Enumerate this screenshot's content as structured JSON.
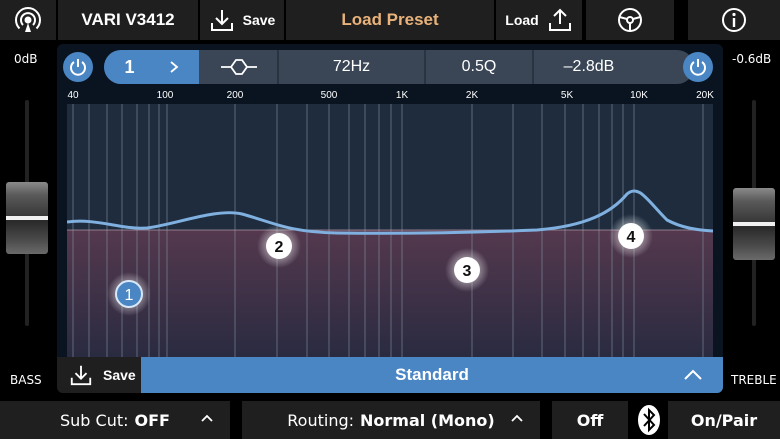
{
  "header": {
    "device_name": "VARI V3412",
    "save_label": "Save",
    "load_preset_label": "Load Preset",
    "load_label": "Load",
    "icons": [
      "broadcast-icon",
      "download-icon",
      "upload-icon",
      "steering-wheel-icon",
      "info-icon"
    ],
    "accent_color": "#e8b27a"
  },
  "bass": {
    "value": "0dB",
    "label": "BASS"
  },
  "treble": {
    "value": "-0.6dB",
    "label": "TREBLE"
  },
  "band_bar": {
    "band_number": "1",
    "frequency": "72Hz",
    "q": "0.5Q",
    "gain": "–2.8dB",
    "filter_icon": "bell-filter-icon"
  },
  "frequency_axis": [
    "40",
    "100",
    "200",
    "500",
    "1K",
    "2K",
    "5K",
    "10K",
    "20K"
  ],
  "eq_points": [
    {
      "label": "1",
      "selected": true
    },
    {
      "label": "2",
      "selected": false
    },
    {
      "label": "3",
      "selected": false
    },
    {
      "label": "4",
      "selected": false
    }
  ],
  "preset_bar": {
    "save_label": "Save",
    "preset_name": "Standard"
  },
  "footer": {
    "sub_cut_label": "Sub Cut:",
    "sub_cut_value": "OFF",
    "routing_label": "Routing:",
    "routing_value": "Normal (Mono)",
    "bt_off_label": "Off",
    "bt_pair_label": "On/Pair"
  },
  "colors": {
    "accent_blue": "#4a86c4",
    "panel": "#1f1f1f",
    "curve": "#7fb0e0"
  }
}
